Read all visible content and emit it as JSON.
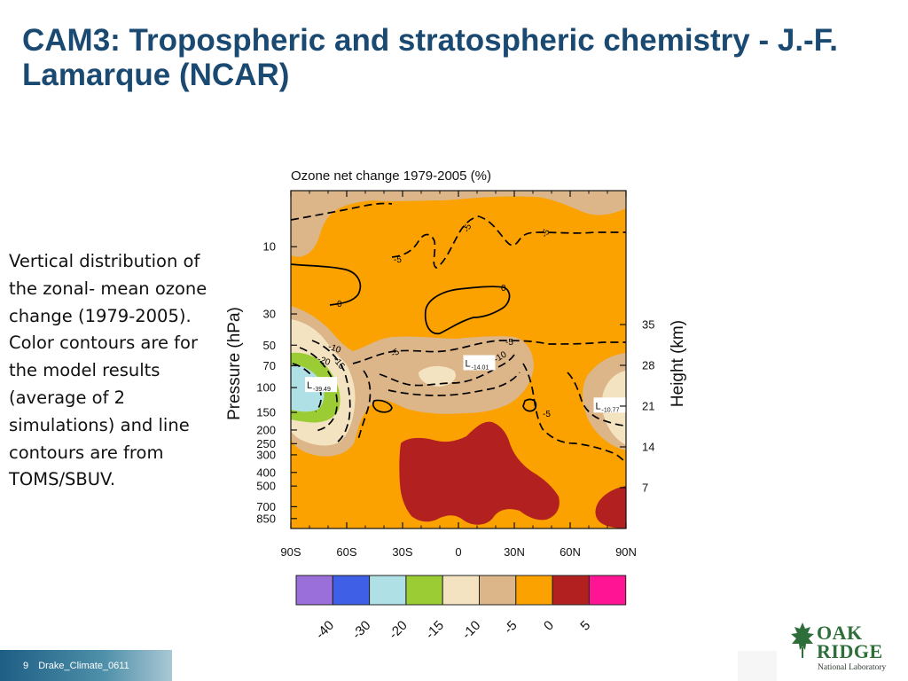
{
  "slide": {
    "title": "CAM3: Tropospheric and stratospheric chemistry - J.-F. Lamarque (NCAR)",
    "description": "Vertical distribution of the zonal- mean ozone change (1979-2005).  Color contours are for the model results (average of 2 simulations) and line contours are from TOMS/SBUV.",
    "footer": {
      "page": "9",
      "label": "Drake_Climate_0611"
    },
    "logo": {
      "line1": "OAK",
      "line2": "RIDGE",
      "line3": "National Laboratory"
    }
  },
  "chart_data": {
    "type": "contour",
    "title": "Ozone net change 1979-2005 (%)",
    "xlabel": "",
    "ylabel": "Pressure (hPa)",
    "y2label": "Height (km)",
    "x_ticks": [
      "90S",
      "60S",
      "30S",
      "0",
      "30N",
      "60N",
      "90N"
    ],
    "x_range": [
      -90,
      90
    ],
    "y_ticks_pressure": [
      10,
      30,
      50,
      70,
      100,
      150,
      200,
      250,
      300,
      400,
      500,
      700,
      850
    ],
    "y_ticks_height_km": [
      35,
      28,
      21,
      14,
      7
    ],
    "log_scale": true,
    "colorbar": {
      "levels": [
        "-40",
        "-30",
        "-20",
        "-15",
        "-10",
        "-5",
        "0",
        "5"
      ],
      "colors": [
        "#9b6fd9",
        "#3f5fe6",
        "#aee0e6",
        "#9ccc34",
        "#f4e3c1",
        "#dcb588",
        "#fba200",
        "#b22020",
        "#ff1493"
      ]
    },
    "minima": [
      {
        "label": "L",
        "value": "-39.49",
        "x": -80,
        "p": 100
      },
      {
        "label": "L",
        "value": "-14.01",
        "x": 5,
        "p": 70
      },
      {
        "label": "L",
        "value": "-10.77",
        "x": 75,
        "p": 140
      }
    ],
    "contour_labels": [
      "-5",
      "-5",
      "-5",
      "0",
      "0",
      "-5",
      "-10",
      "-15",
      "-20",
      "-5",
      "-10",
      "-5"
    ]
  }
}
